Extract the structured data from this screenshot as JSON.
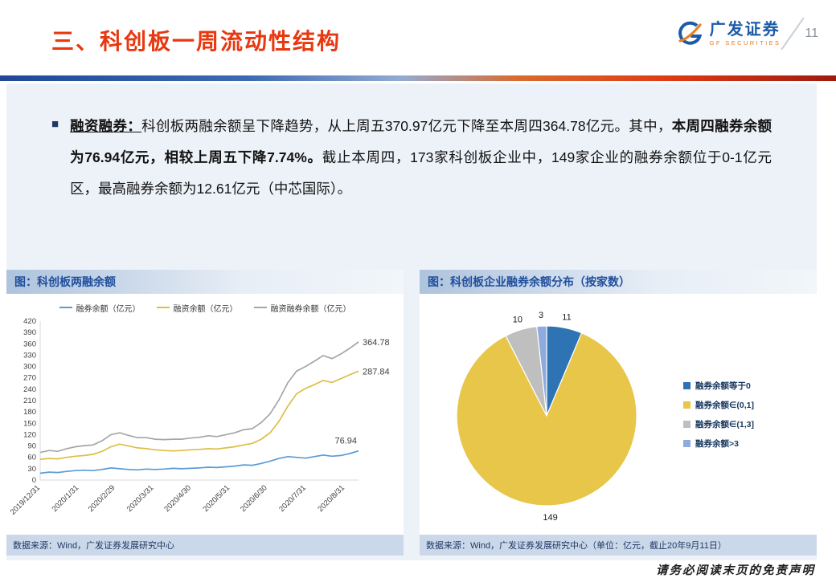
{
  "slide": {
    "title": "三、科创板一周流动性结构",
    "page_number": "11",
    "brand_name": "广发证券",
    "brand_subtitle": "GF SECURITIES",
    "watermark": "请务必阅读末页的免责声明",
    "accent_red": "#E8380F",
    "accent_blue": "#1B5BA8"
  },
  "bullet": {
    "marker": "■",
    "segments": [
      {
        "text": "融资融券：",
        "style": "bold-underline"
      },
      {
        "text": "科创板两融余额呈下降趋势，从上周五370.97亿元下降至本周四364.78亿元。其中，",
        "style": "normal"
      },
      {
        "text": "本周四融券余额为76.94亿元，相较上周五下降7.74%。",
        "style": "bold"
      },
      {
        "text": "截止本周四，173家科创板企业中，149家企业的融券余额位于0-1亿元区，最高融券余额为12.61亿元（中芯国际）。",
        "style": "normal"
      }
    ]
  },
  "left_panel": {
    "header": "图：科创板两融余额",
    "source": "数据来源：Wind，广发证券发展研究中心"
  },
  "right_panel": {
    "header": "图：科创板企业融券余额分布（按家数）",
    "source": "数据来源：Wind，广发证券发展研究中心（单位：亿元，截止20年9月11日）"
  },
  "chart_data": [
    {
      "type": "line",
      "title": "科创板两融余额",
      "x_tick_labels": [
        "2019/12/31",
        "2020/1/31",
        "2020/2/29",
        "2020/3/31",
        "2020/4/30",
        "2020/5/31",
        "2020/6/30",
        "2020/7/31",
        "2020/8/31"
      ],
      "x_tick_positions": [
        0,
        31,
        60,
        91,
        121,
        152,
        182,
        213,
        244
      ],
      "x_total_days": 255,
      "ylim": [
        0,
        420
      ],
      "y_tick_step": 30,
      "grid": false,
      "legend_position": "top",
      "series": [
        {
          "name": "融券余额（亿元）",
          "color": "#5B9BD5",
          "end_label": "76.94",
          "values": [
            18,
            21,
            20,
            23,
            25,
            26,
            25,
            28,
            32,
            30,
            28,
            27,
            29,
            28,
            29,
            31,
            30,
            31,
            32,
            34,
            33,
            35,
            37,
            40,
            39,
            44,
            50,
            57,
            62,
            60,
            58,
            62,
            66,
            63,
            65,
            70,
            76.94
          ]
        },
        {
          "name": "融资余额（亿元）",
          "color": "#DDBE45",
          "end_label": "287.84",
          "values": [
            55,
            57,
            56,
            60,
            63,
            65,
            68,
            76,
            88,
            95,
            90,
            85,
            83,
            80,
            78,
            77,
            78,
            80,
            81,
            83,
            82,
            85,
            88,
            93,
            97,
            108,
            125,
            155,
            195,
            228,
            242,
            252,
            263,
            258,
            268,
            278,
            287.84
          ]
        },
        {
          "name": "融资融券余额（亿元）",
          "color": "#A6A6A6",
          "end_label": "364.78",
          "values": [
            73,
            78,
            76,
            83,
            88,
            91,
            93,
            104,
            120,
            125,
            118,
            112,
            112,
            108,
            107,
            108,
            108,
            111,
            113,
            117,
            115,
            120,
            125,
            133,
            136,
            152,
            175,
            212,
            257,
            288,
            300,
            314,
            329,
            321,
            333,
            348,
            364.78
          ]
        }
      ]
    },
    {
      "type": "pie",
      "title": "科创板企业融券余额分布（按家数）",
      "labels": [
        "融券余额等于0",
        "融券余额∈(0,1]",
        "融券余额∈(1,3]",
        "融券余额>3"
      ],
      "values": [
        11,
        149,
        10,
        3
      ],
      "colors": [
        "#2E74B5",
        "#E7C64A",
        "#BFBFBF",
        "#8FAADC"
      ],
      "total": 173,
      "start_angle_deg": -90,
      "direction": "clockwise",
      "legend_position": "right"
    }
  ]
}
